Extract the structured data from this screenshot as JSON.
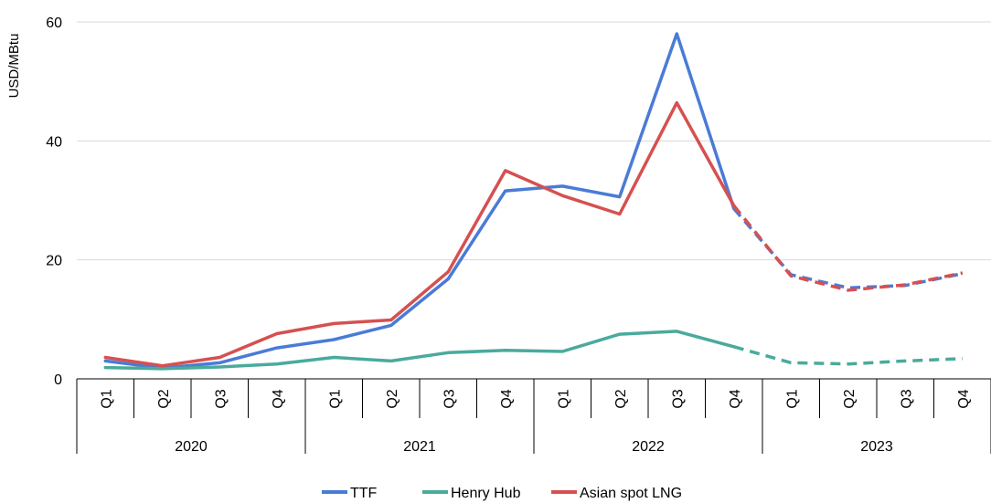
{
  "chart_data": {
    "type": "line",
    "ylabel": "USD/MBtu",
    "ylim": [
      0,
      60
    ],
    "yticks": [
      "0",
      "20",
      "40",
      "60"
    ],
    "grid": true,
    "legend_position": "bottom",
    "quarters": [
      "Q1",
      "Q2",
      "Q3",
      "Q4",
      "Q1",
      "Q2",
      "Q3",
      "Q4",
      "Q1",
      "Q2",
      "Q3",
      "Q4",
      "Q1",
      "Q2",
      "Q3",
      "Q4"
    ],
    "years": [
      "2020",
      "2021",
      "2022",
      "2023"
    ],
    "projected_from_index": 11,
    "series": [
      {
        "name": "TTF",
        "color": "#4a7bd6",
        "values": [
          3.0,
          1.8,
          2.7,
          5.2,
          6.6,
          9.0,
          16.8,
          31.6,
          32.4,
          30.6,
          58.0,
          28.6,
          17.5,
          15.3,
          15.7,
          17.7
        ]
      },
      {
        "name": "Henry Hub",
        "color": "#4aaa9c",
        "values": [
          1.9,
          1.7,
          2.0,
          2.5,
          3.6,
          3.0,
          4.4,
          4.8,
          4.6,
          7.5,
          8.0,
          5.4,
          2.7,
          2.5,
          3.0,
          3.4
        ]
      },
      {
        "name": "Asian spot LNG",
        "color": "#d65050",
        "values": [
          3.6,
          2.2,
          3.6,
          7.6,
          9.3,
          9.9,
          18.0,
          35.0,
          30.8,
          27.7,
          46.4,
          29.1,
          17.3,
          14.9,
          15.8,
          17.8
        ]
      }
    ]
  }
}
